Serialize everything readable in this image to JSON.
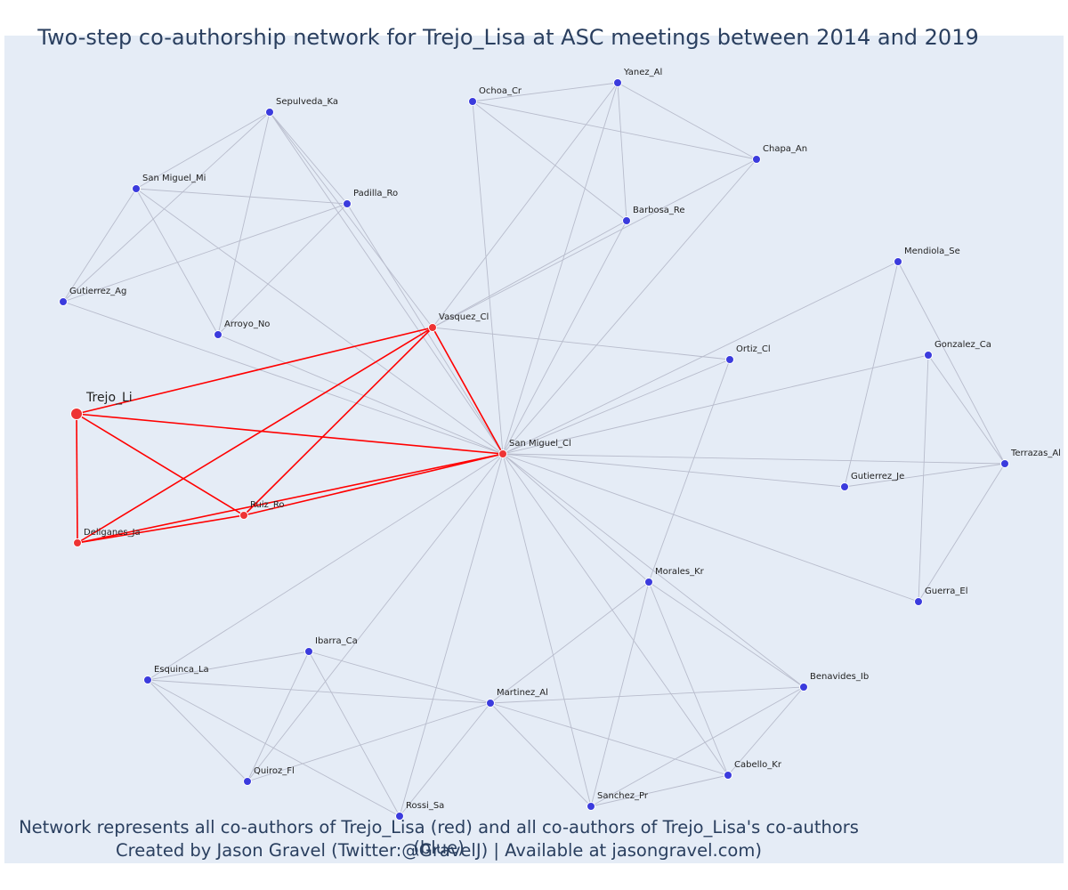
{
  "title": "Two-step co-authorship network for Trejo_Lisa at ASC meetings between 2014 and 2019",
  "caption_line1": "Network represents all co-authors of Trejo_Lisa (red) and all co-authors of Trejo_Lisa's co-authors (blue)",
  "caption_line2": "Created by Jason Gravel (Twitter:@GravelJ) | Available at jasongravel.com)",
  "colors": {
    "background": "#e5ecf6",
    "first_degree": "#ee3333",
    "second_degree": "#3b3bdd",
    "edge_first_degree": "#ff0000",
    "edge_second_degree": "#b8bccc",
    "text": "#2a3f5f"
  },
  "nodes": [
    {
      "id": "Trejo_Li",
      "label": "Trejo_Li",
      "group": "focus"
    },
    {
      "id": "Deliganes_Ja",
      "label": "Deliganes_Ja",
      "group": "first"
    },
    {
      "id": "Ruiz_Ro",
      "label": "Ruiz_Ro",
      "group": "first"
    },
    {
      "id": "Vasquez_Cl",
      "label": "Vasquez_Cl",
      "group": "first"
    },
    {
      "id": "San Miguel_Cl",
      "label": "San Miguel_Cl",
      "group": "first"
    },
    {
      "id": "Sepulveda_Ka",
      "label": "Sepulveda_Ka",
      "group": "second"
    },
    {
      "id": "San Miguel_Mi",
      "label": "San Miguel_Mi",
      "group": "second"
    },
    {
      "id": "Padilla_Ro",
      "label": "Padilla_Ro",
      "group": "second"
    },
    {
      "id": "Gutierrez_Ag",
      "label": "Gutierrez_Ag",
      "group": "second"
    },
    {
      "id": "Arroyo_No",
      "label": "Arroyo_No",
      "group": "second"
    },
    {
      "id": "Ochoa_Cr",
      "label": "Ochoa_Cr",
      "group": "second"
    },
    {
      "id": "Yanez_Al",
      "label": "Yanez_Al",
      "group": "second"
    },
    {
      "id": "Chapa_An",
      "label": "Chapa_An",
      "group": "second"
    },
    {
      "id": "Barbosa_Re",
      "label": "Barbosa_Re",
      "group": "second"
    },
    {
      "id": "Mendiola_Se",
      "label": "Mendiola_Se",
      "group": "second"
    },
    {
      "id": "Ortiz_Cl",
      "label": "Ortiz_Cl",
      "group": "second"
    },
    {
      "id": "Gonzalez_Ca",
      "label": "Gonzalez_Ca",
      "group": "second"
    },
    {
      "id": "Terrazas_Al",
      "label": "Terrazas_Al",
      "group": "second"
    },
    {
      "id": "Gutierrez_Je",
      "label": "Gutierrez_Je",
      "group": "second"
    },
    {
      "id": "Guerra_El",
      "label": "Guerra_El",
      "group": "second"
    },
    {
      "id": "Morales_Kr",
      "label": "Morales_Kr",
      "group": "second"
    },
    {
      "id": "Benavides_Ib",
      "label": "Benavides_Ib",
      "group": "second"
    },
    {
      "id": "Cabello_Kr",
      "label": "Cabello_Kr",
      "group": "second"
    },
    {
      "id": "Sanchez_Pr",
      "label": "Sanchez_Pr",
      "group": "second"
    },
    {
      "id": "Martinez_Al",
      "label": "Martinez_Al",
      "group": "second"
    },
    {
      "id": "Ibarra_Ca",
      "label": "Ibarra_Ca",
      "group": "second"
    },
    {
      "id": "Esquinca_La",
      "label": "Esquinca_La",
      "group": "second"
    },
    {
      "id": "Quiroz_Fl",
      "label": "Quiroz_Fl",
      "group": "second"
    },
    {
      "id": "Rossi_Sa",
      "label": "Rossi_Sa",
      "group": "second"
    }
  ],
  "edges": [
    [
      "Trejo_Li",
      "Deliganes_Ja"
    ],
    [
      "Trejo_Li",
      "Ruiz_Ro"
    ],
    [
      "Trejo_Li",
      "Vasquez_Cl"
    ],
    [
      "Trejo_Li",
      "San Miguel_Cl"
    ],
    [
      "Deliganes_Ja",
      "Ruiz_Ro"
    ],
    [
      "Deliganes_Ja",
      "Vasquez_Cl"
    ],
    [
      "Deliganes_Ja",
      "San Miguel_Cl"
    ],
    [
      "Ruiz_Ro",
      "Vasquez_Cl"
    ],
    [
      "Ruiz_Ro",
      "San Miguel_Cl"
    ],
    [
      "Vasquez_Cl",
      "San Miguel_Cl"
    ],
    [
      "Sepulveda_Ka",
      "Padilla_Ro"
    ],
    [
      "Sepulveda_Ka",
      "San Miguel_Mi"
    ],
    [
      "Sepulveda_Ka",
      "Gutierrez_Ag"
    ],
    [
      "Sepulveda_Ka",
      "Arroyo_No"
    ],
    [
      "Sepulveda_Ka",
      "Vasquez_Cl"
    ],
    [
      "Sepulveda_Ka",
      "San Miguel_Cl"
    ],
    [
      "San Miguel_Mi",
      "Padilla_Ro"
    ],
    [
      "San Miguel_Mi",
      "Gutierrez_Ag"
    ],
    [
      "San Miguel_Mi",
      "Arroyo_No"
    ],
    [
      "San Miguel_Mi",
      "San Miguel_Cl"
    ],
    [
      "Padilla_Ro",
      "Gutierrez_Ag"
    ],
    [
      "Padilla_Ro",
      "Arroyo_No"
    ],
    [
      "Padilla_Ro",
      "San Miguel_Cl"
    ],
    [
      "Gutierrez_Ag",
      "San Miguel_Cl"
    ],
    [
      "Arroyo_No",
      "San Miguel_Cl"
    ],
    [
      "Ochoa_Cr",
      "Yanez_Al"
    ],
    [
      "Ochoa_Cr",
      "Chapa_An"
    ],
    [
      "Ochoa_Cr",
      "Barbosa_Re"
    ],
    [
      "Ochoa_Cr",
      "San Miguel_Cl"
    ],
    [
      "Yanez_Al",
      "Chapa_An"
    ],
    [
      "Yanez_Al",
      "Barbosa_Re"
    ],
    [
      "Yanez_Al",
      "San Miguel_Cl"
    ],
    [
      "Yanez_Al",
      "Vasquez_Cl"
    ],
    [
      "Chapa_An",
      "Vasquez_Cl"
    ],
    [
      "Chapa_An",
      "San Miguel_Cl"
    ],
    [
      "Barbosa_Re",
      "Vasquez_Cl"
    ],
    [
      "Barbosa_Re",
      "San Miguel_Cl"
    ],
    [
      "Vasquez_Cl",
      "Ortiz_Cl"
    ],
    [
      "Mendiola_Se",
      "San Miguel_Cl"
    ],
    [
      "Mendiola_Se",
      "Terrazas_Al"
    ],
    [
      "Mendiola_Se",
      "Gutierrez_Je"
    ],
    [
      "Ortiz_Cl",
      "San Miguel_Cl"
    ],
    [
      "Ortiz_Cl",
      "Morales_Kr"
    ],
    [
      "Gonzalez_Ca",
      "San Miguel_Cl"
    ],
    [
      "Gonzalez_Ca",
      "Terrazas_Al"
    ],
    [
      "Gonzalez_Ca",
      "Guerra_El"
    ],
    [
      "Terrazas_Al",
      "San Miguel_Cl"
    ],
    [
      "Terrazas_Al",
      "Gutierrez_Je"
    ],
    [
      "Terrazas_Al",
      "Guerra_El"
    ],
    [
      "Gutierrez_Je",
      "San Miguel_Cl"
    ],
    [
      "Guerra_El",
      "San Miguel_Cl"
    ],
    [
      "Morales_Kr",
      "San Miguel_Cl"
    ],
    [
      "Morales_Kr",
      "Benavides_Ib"
    ],
    [
      "Morales_Kr",
      "Cabello_Kr"
    ],
    [
      "Morales_Kr",
      "Sanchez_Pr"
    ],
    [
      "Morales_Kr",
      "Martinez_Al"
    ],
    [
      "Benavides_Ib",
      "San Miguel_Cl"
    ],
    [
      "Benavides_Ib",
      "Cabello_Kr"
    ],
    [
      "Benavides_Ib",
      "Sanchez_Pr"
    ],
    [
      "Benavides_Ib",
      "Martinez_Al"
    ],
    [
      "Cabello_Kr",
      "San Miguel_Cl"
    ],
    [
      "Cabello_Kr",
      "Sanchez_Pr"
    ],
    [
      "Cabello_Kr",
      "Martinez_Al"
    ],
    [
      "Sanchez_Pr",
      "San Miguel_Cl"
    ],
    [
      "Sanchez_Pr",
      "Martinez_Al"
    ],
    [
      "Martinez_Al",
      "Esquinca_La"
    ],
    [
      "Martinez_Al",
      "Ibarra_Ca"
    ],
    [
      "Martinez_Al",
      "Quiroz_Fl"
    ],
    [
      "Martinez_Al",
      "Rossi_Sa"
    ],
    [
      "Ibarra_Ca",
      "Esquinca_La"
    ],
    [
      "Ibarra_Ca",
      "Quiroz_Fl"
    ],
    [
      "Ibarra_Ca",
      "Rossi_Sa"
    ],
    [
      "Esquinca_La",
      "San Miguel_Cl"
    ],
    [
      "Esquinca_La",
      "Quiroz_Fl"
    ],
    [
      "Esquinca_La",
      "Rossi_Sa"
    ],
    [
      "Quiroz_Fl",
      "San Miguel_Cl"
    ],
    [
      "Rossi_Sa",
      "San Miguel_Cl"
    ]
  ]
}
